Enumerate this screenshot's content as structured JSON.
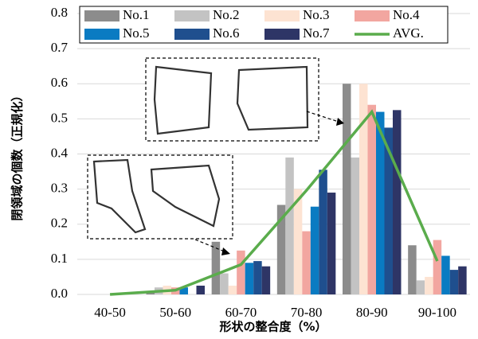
{
  "chart_data": {
    "type": "bar",
    "x_label": "形状の整合度（%）",
    "y_label": "閉領域の個数（正規化）",
    "categories": [
      "40-50",
      "50-60",
      "60-70",
      "70-80",
      "80-90",
      "90-100"
    ],
    "ylim": [
      0,
      0.8
    ],
    "yticks": [
      {
        "value": 0,
        "label": "0.0"
      },
      0.1,
      0.2,
      0.3,
      0.4,
      0.5,
      0.6,
      0.7,
      0.8
    ],
    "series": [
      {
        "name": "No.1",
        "color": "#8c8c8c",
        "values": [
          0,
          0.01,
          0.15,
          0.255,
          0.6,
          0.14
        ]
      },
      {
        "name": "No.2",
        "color": "#c3c3c3",
        "values": [
          0,
          0.02,
          0.06,
          0.39,
          0.39,
          0.04
        ]
      },
      {
        "name": "No.3",
        "color": "#fde3d2",
        "values": [
          0,
          0.025,
          0.025,
          0.3,
          0.6,
          0.05
        ]
      },
      {
        "name": "No.4",
        "color": "#f2a6a0",
        "values": [
          0,
          0.02,
          0.125,
          0.18,
          0.54,
          0.155
        ]
      },
      {
        "name": "No.5",
        "color": "#0a7bc2",
        "values": [
          0,
          0.02,
          0.09,
          0.25,
          0.52,
          0.11
        ]
      },
      {
        "name": "No.6",
        "color": "#1f4f8e",
        "values": [
          0,
          0,
          0.095,
          0.355,
          0.475,
          0.07
        ]
      },
      {
        "name": "No.7",
        "color": "#2e3566",
        "values": [
          0,
          0.025,
          0.08,
          0.29,
          0.525,
          0.08
        ]
      },
      {
        "name": "AVG.",
        "type": "line",
        "color": "#5aac4c",
        "values": [
          0,
          0.012,
          0.085,
          0.296,
          0.52,
          0.095
        ]
      }
    ]
  }
}
